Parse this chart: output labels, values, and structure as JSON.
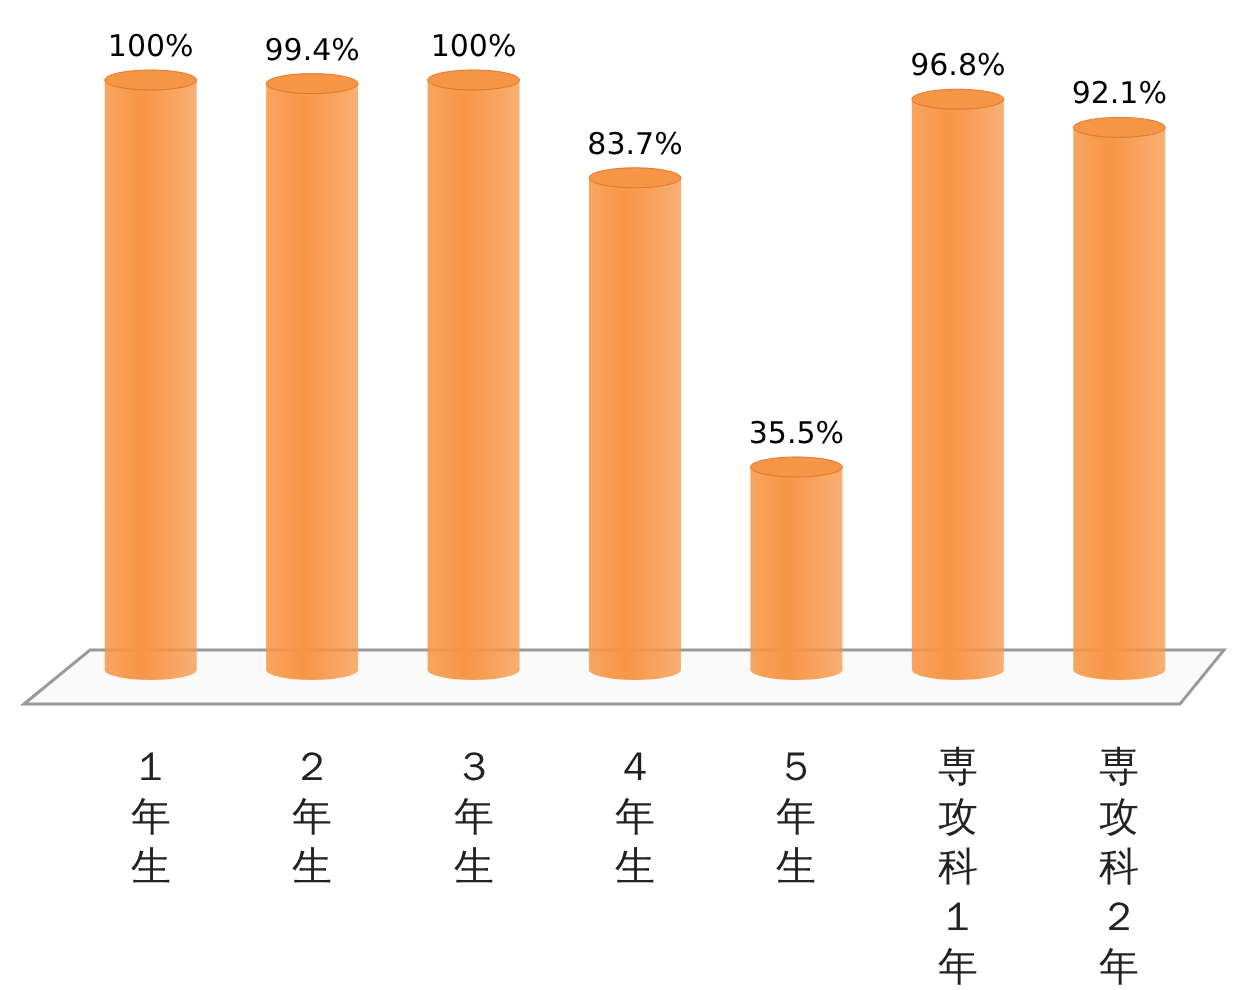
{
  "chart_data": {
    "type": "bar",
    "categories": [
      "１年生",
      "２年生",
      "３年生",
      "４年生",
      "５年生",
      "専攻科１年",
      "専攻科２年"
    ],
    "values": [
      100,
      99.4,
      100,
      83.7,
      35.5,
      96.8,
      92.1
    ],
    "value_labels": [
      "100%",
      "99.4%",
      "100%",
      "83.7%",
      "35.5%",
      "96.8%",
      "92.1%"
    ],
    "color": "#f79646"
  }
}
